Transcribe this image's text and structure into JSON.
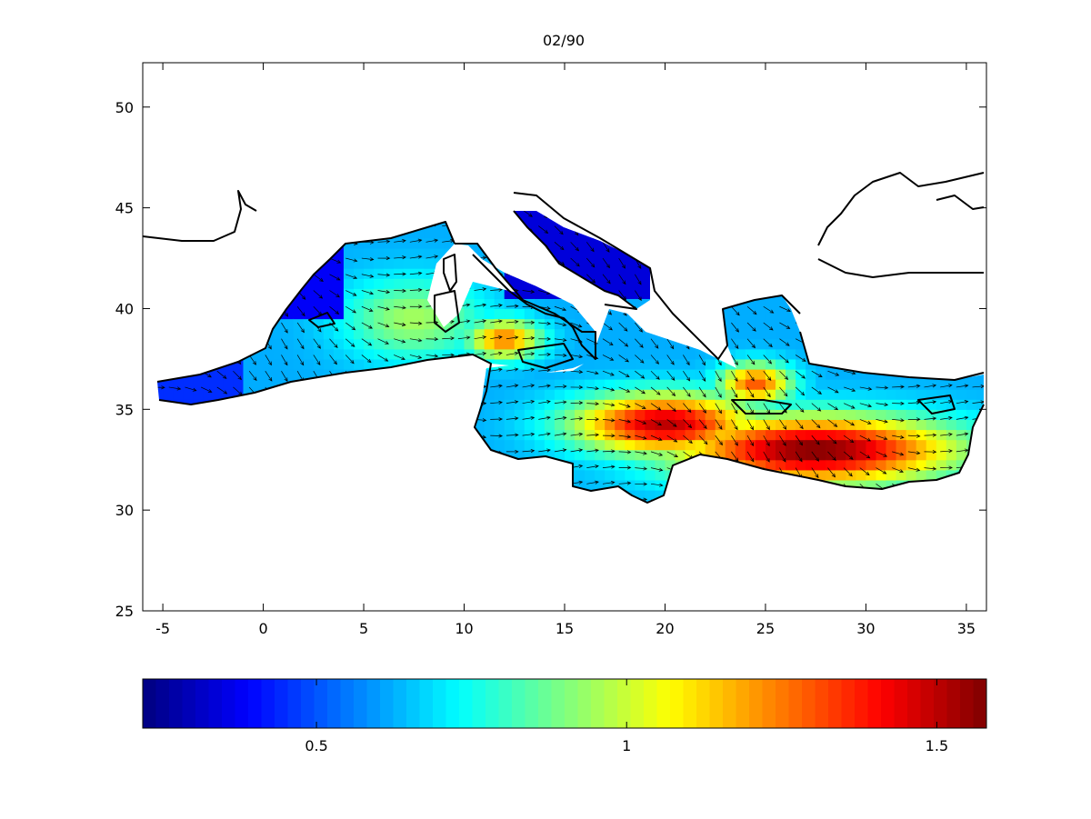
{
  "chart_data": {
    "type": "heatmap",
    "title": "02/90",
    "subtype": "vector-field-map",
    "region": "Mediterranean Sea",
    "xlim": [
      -6,
      36
    ],
    "ylim": [
      25,
      52.2
    ],
    "xticks": [
      -5,
      0,
      5,
      10,
      15,
      20,
      25,
      30,
      35
    ],
    "xtick_labels": [
      "-5",
      "0",
      "5",
      "10",
      "15",
      "20",
      "25",
      "30",
      "35"
    ],
    "yticks": [
      25,
      30,
      35,
      40,
      45,
      50
    ],
    "ytick_labels": [
      "25",
      "30",
      "35",
      "40",
      "45",
      "50"
    ],
    "grid": false,
    "colormap": "jet",
    "colorbar": {
      "orientation": "horizontal",
      "placement": "below",
      "range": [
        0.22,
        1.58
      ],
      "ticks": [
        0.5,
        1,
        1.5
      ],
      "tick_labels": [
        "0.5",
        "1",
        "1.5"
      ]
    },
    "field_hotspots": [
      {
        "lon": 27.5,
        "lat": 33.0,
        "value": 1.58,
        "spread_lon": 7.0,
        "spread_lat": 1.7
      },
      {
        "lon": 20.0,
        "lat": 34.3,
        "value": 1.5,
        "spread_lon": 4.5,
        "spread_lat": 1.5
      },
      {
        "lon": 12.0,
        "lat": 38.5,
        "value": 1.25,
        "spread_lon": 1.8,
        "spread_lat": 1.0
      },
      {
        "lon": 24.5,
        "lat": 36.3,
        "value": 1.3,
        "spread_lon": 1.8,
        "spread_lat": 1.0
      },
      {
        "lon": 7.5,
        "lat": 39.5,
        "value": 0.95,
        "spread_lon": 3.5,
        "spread_lat": 2.0
      }
    ],
    "field_background_value": 0.62,
    "low_value_areas": [
      {
        "name": "adriatic",
        "value": 0.32
      },
      {
        "name": "gulf-of-lion-coast",
        "value": 0.35
      },
      {
        "name": "alboran",
        "value": 0.42
      },
      {
        "name": "north-aegean",
        "value": 0.55
      }
    ],
    "vector_direction": "predominantly southeastward (wind/current arrows)",
    "colors": {
      "land_outline": "#000000",
      "axes": "#000000",
      "background": "#ffffff"
    }
  }
}
